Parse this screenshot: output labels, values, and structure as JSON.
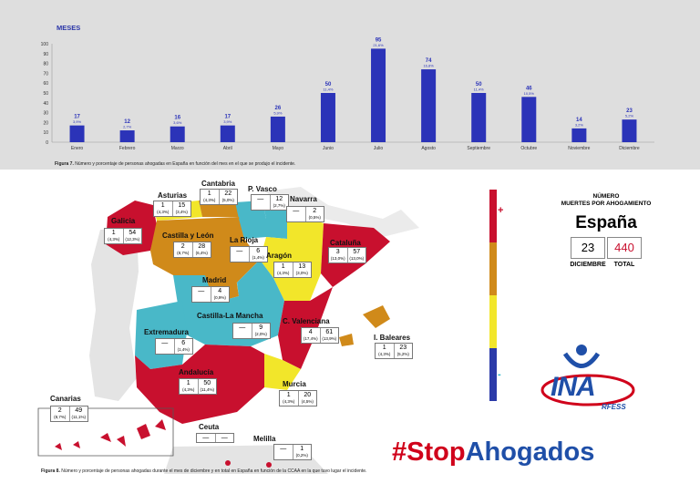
{
  "chart_data": {
    "type": "bar",
    "title": "MESES",
    "categories": [
      "Enero",
      "Febrero",
      "Marzo",
      "Abril",
      "Mayo",
      "Junio",
      "Julio",
      "Agosto",
      "Septiembre",
      "Octubre",
      "Noviembre",
      "Diciembre"
    ],
    "values": [
      17,
      12,
      16,
      17,
      26,
      50,
      95,
      74,
      50,
      46,
      14,
      23
    ],
    "value_labels": [
      "17",
      "12",
      "16",
      "17",
      "26",
      "50",
      "95",
      "74",
      "50",
      "46",
      "14",
      "23"
    ],
    "percent_labels": [
      "3,9%",
      "2,7%",
      "3,6%",
      "3,9%",
      "5,9%",
      "11,4%",
      "21,6%",
      "16,8%",
      "11,4%",
      "10,5%",
      "3,2%",
      "5,2%"
    ],
    "ylim": [
      0,
      100
    ],
    "yticks": [
      "0",
      "10",
      "20",
      "30",
      "40",
      "50",
      "60",
      "70",
      "80",
      "90",
      "100"
    ],
    "grid": false,
    "bar_color": "#2b33b8"
  },
  "captions": {
    "fig7_label": "Figura 7.",
    "fig7_text": " Número y porcentaje de personas ahogadas en España en función del mes en el que se produjo el incidente.",
    "fig8_label": "Figura 8.",
    "fig8_text": " Número y porcentaje de personas ahogadas durante el mes de diciembre y en total en España en función de la CCAA en la que tuvo lugar el incidente."
  },
  "regions": [
    {
      "name": "Galicia",
      "dec": "1",
      "dec_pct": "(4,3%)",
      "total": "54",
      "total_pct": "(12,3%)"
    },
    {
      "name": "Asturias",
      "dec": "1",
      "dec_pct": "(4,3%)",
      "total": "15",
      "total_pct": "(3,4%)"
    },
    {
      "name": "Cantabria",
      "dec": "1",
      "dec_pct": "(4,3%)",
      "total": "22",
      "total_pct": "(5,0%)"
    },
    {
      "name": "P. Vasco",
      "dec": "—",
      "dec_pct": "",
      "total": "12",
      "total_pct": "(2,7%)"
    },
    {
      "name": "Navarra",
      "dec": "—",
      "dec_pct": "",
      "total": "2",
      "total_pct": "(0,5%)"
    },
    {
      "name": "Castilla y León",
      "dec": "2",
      "dec_pct": "(8,7%)",
      "total": "28",
      "total_pct": "(6,4%)"
    },
    {
      "name": "La Rioja",
      "dec": "—",
      "dec_pct": "",
      "total": "6",
      "total_pct": "(1,4%)"
    },
    {
      "name": "Aragón",
      "dec": "1",
      "dec_pct": "(4,3%)",
      "total": "13",
      "total_pct": "(3,0%)"
    },
    {
      "name": "Cataluña",
      "dec": "3",
      "dec_pct": "(13,0%)",
      "total": "57",
      "total_pct": "(13,0%)"
    },
    {
      "name": "Madrid",
      "dec": "—",
      "dec_pct": "",
      "total": "4",
      "total_pct": "(0,9%)"
    },
    {
      "name": "Castilla-La Mancha",
      "dec": "—",
      "dec_pct": "",
      "total": "9",
      "total_pct": "(2,0%)"
    },
    {
      "name": "Extremadura",
      "dec": "—",
      "dec_pct": "",
      "total": "6",
      "total_pct": "(1,4%)"
    },
    {
      "name": "C. Valenciana",
      "dec": "4",
      "dec_pct": "(17,4%)",
      "total": "61",
      "total_pct": "(13,9%)"
    },
    {
      "name": "I. Baleares",
      "dec": "1",
      "dec_pct": "(4,3%)",
      "total": "23",
      "total_pct": "(5,2%)"
    },
    {
      "name": "Andalucía",
      "dec": "1",
      "dec_pct": "(4,3%)",
      "total": "50",
      "total_pct": "(11,4%)"
    },
    {
      "name": "Murcia",
      "dec": "1",
      "dec_pct": "(4,3%)",
      "total": "20",
      "total_pct": "(4,5%)"
    },
    {
      "name": "Canarias",
      "dec": "2",
      "dec_pct": "(8,7%)",
      "total": "49",
      "total_pct": "(11,1%)"
    },
    {
      "name": "Ceuta",
      "dec": "—",
      "dec_pct": "",
      "total": "—",
      "total_pct": ""
    },
    {
      "name": "Melilla",
      "dec": "—",
      "dec_pct": "",
      "total": "1",
      "total_pct": "(0,2%)"
    }
  ],
  "scale": {
    "plus": "+",
    "minus": "-",
    "colors": [
      "#c8102e",
      "#d08a1a",
      "#f2e62a",
      "#2b3aa8",
      "#49b8c8"
    ]
  },
  "info": {
    "header_line1": "NÚMERO",
    "header_line2": "MUERTES POR AHOGAMIENTO",
    "country": "España",
    "december_value": "23",
    "total_value": "440",
    "december_label": "DICIEMBRE",
    "total_label": "TOTAL"
  },
  "logo": {
    "text": "INA",
    "subtext": "RFESS",
    "colors": [
      "#1f4fa8",
      "#d0021b"
    ]
  },
  "hashtag": {
    "part1": "#Stop",
    "part2": "Ahogados"
  }
}
